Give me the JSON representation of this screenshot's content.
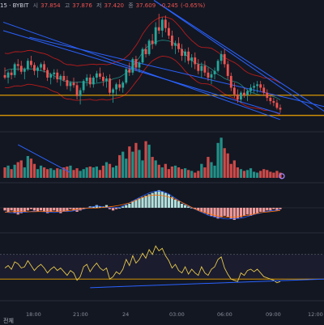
{
  "header": {
    "symbol_suffix": "15 · BYBIT",
    "open_label": "시",
    "open_value": "37.854",
    "high_label": "고",
    "high_value": "37.876",
    "low_label": "저",
    "low_value": "37.420",
    "close_label": "종",
    "close_value": "37.609",
    "change_value": "-0.245",
    "change_pct": "(-0.65%)"
  },
  "bottom_bar": {
    "corner_label": "전체"
  },
  "colors": {
    "background": "#131722",
    "up": "#26a69a",
    "down": "#ef5350",
    "trendline": "#2962ff",
    "horizontal_level": "#f0a500",
    "band": "#b71c1c",
    "rsi_line": "#e6c84c",
    "macd_line": "#2962ff",
    "signal_line": "#ff6d00"
  },
  "chart_data": {
    "type": "candlestick",
    "x_ticks": [
      "18:00",
      "21:00",
      "24",
      "03:00",
      "06:00",
      "09:00",
      "12:00"
    ],
    "ohlc": [
      [
        55,
        64,
        50,
        52
      ],
      [
        52,
        60,
        45,
        58
      ],
      [
        58,
        62,
        50,
        55
      ],
      [
        55,
        70,
        52,
        68
      ],
      [
        68,
        74,
        60,
        66
      ],
      [
        66,
        72,
        56,
        59
      ],
      [
        59,
        64,
        50,
        62
      ],
      [
        62,
        75,
        60,
        72
      ],
      [
        72,
        78,
        64,
        67
      ],
      [
        67,
        70,
        55,
        60
      ],
      [
        60,
        66,
        52,
        64
      ],
      [
        64,
        70,
        60,
        68
      ],
      [
        68,
        72,
        58,
        61
      ],
      [
        61,
        64,
        48,
        52
      ],
      [
        52,
        58,
        44,
        56
      ],
      [
        56,
        62,
        50,
        58
      ],
      [
        58,
        62,
        46,
        50
      ],
      [
        50,
        56,
        42,
        54
      ],
      [
        54,
        60,
        47,
        49
      ],
      [
        49,
        54,
        38,
        42
      ],
      [
        42,
        48,
        36,
        46
      ],
      [
        46,
        52,
        40,
        43
      ],
      [
        43,
        47,
        26,
        30
      ],
      [
        30,
        40,
        20,
        37
      ],
      [
        37,
        50,
        34,
        48
      ],
      [
        48,
        56,
        42,
        52
      ],
      [
        52,
        56,
        40,
        44
      ],
      [
        44,
        54,
        40,
        52
      ],
      [
        52,
        60,
        46,
        57
      ],
      [
        57,
        64,
        50,
        53
      ],
      [
        53,
        58,
        42,
        48
      ],
      [
        48,
        54,
        40,
        51
      ],
      [
        51,
        56,
        30,
        34
      ],
      [
        34,
        40,
        22,
        38
      ],
      [
        38,
        46,
        30,
        44
      ],
      [
        44,
        50,
        36,
        40
      ],
      [
        40,
        48,
        34,
        46
      ],
      [
        46,
        64,
        44,
        62
      ],
      [
        62,
        70,
        54,
        58
      ],
      [
        58,
        76,
        55,
        74
      ],
      [
        74,
        78,
        60,
        64
      ],
      [
        64,
        72,
        58,
        70
      ],
      [
        70,
        88,
        68,
        86
      ],
      [
        86,
        92,
        76,
        80
      ],
      [
        80,
        98,
        78,
        96
      ],
      [
        96,
        104,
        86,
        92
      ],
      [
        92,
        118,
        90,
        112
      ],
      [
        112,
        128,
        104,
        108
      ],
      [
        108,
        124,
        100,
        121
      ],
      [
        121,
        126,
        106,
        111
      ],
      [
        111,
        118,
        98,
        102
      ],
      [
        102,
        108,
        86,
        90
      ],
      [
        90,
        96,
        80,
        93
      ],
      [
        93,
        100,
        82,
        86
      ],
      [
        86,
        92,
        72,
        78
      ],
      [
        78,
        86,
        70,
        83
      ],
      [
        83,
        88,
        68,
        72
      ],
      [
        72,
        80,
        64,
        76
      ],
      [
        76,
        82,
        62,
        68
      ],
      [
        68,
        74,
        56,
        60
      ],
      [
        60,
        70,
        52,
        66
      ],
      [
        66,
        72,
        54,
        58
      ],
      [
        58,
        64,
        48,
        52
      ],
      [
        52,
        60,
        44,
        56
      ],
      [
        56,
        64,
        50,
        60
      ],
      [
        60,
        74,
        58,
        72
      ],
      [
        72,
        84,
        68,
        80
      ],
      [
        80,
        86,
        64,
        68
      ],
      [
        68,
        72,
        50,
        54
      ],
      [
        54,
        58,
        36,
        40
      ],
      [
        40,
        46,
        28,
        32
      ],
      [
        32,
        38,
        22,
        26
      ],
      [
        26,
        36,
        22,
        34
      ],
      [
        34,
        40,
        28,
        31
      ],
      [
        31,
        38,
        24,
        36
      ],
      [
        36,
        44,
        32,
        40
      ],
      [
        40,
        46,
        34,
        42
      ],
      [
        42,
        48,
        34,
        44
      ],
      [
        44,
        48,
        36,
        40
      ],
      [
        40,
        44,
        30,
        34
      ],
      [
        34,
        38,
        24,
        28
      ],
      [
        28,
        32,
        20,
        24
      ],
      [
        24,
        28,
        18,
        22
      ],
      [
        22,
        26,
        14,
        16
      ],
      [
        16,
        20,
        10,
        14
      ]
    ],
    "volume": [
      12,
      14,
      10,
      15,
      18,
      20,
      12,
      25,
      22,
      16,
      10,
      14,
      12,
      10,
      11,
      9,
      11,
      10,
      12,
      13,
      14,
      9,
      11,
      8,
      10,
      12,
      13,
      12,
      13,
      9,
      14,
      18,
      16,
      12,
      14,
      26,
      30,
      22,
      36,
      30,
      40,
      32,
      20,
      42,
      38,
      24,
      20,
      15,
      12,
      16,
      10,
      13,
      14,
      12,
      10,
      11,
      9,
      8,
      6,
      8,
      16,
      12,
      24,
      18,
      14,
      40,
      46,
      34,
      28,
      16,
      20,
      12,
      10,
      8,
      9,
      11,
      7,
      6,
      8,
      10,
      9,
      7,
      6,
      8,
      6
    ],
    "macd_hist": [
      -2,
      -3,
      -2,
      -4,
      -5,
      -4,
      -3,
      -2,
      -1,
      -2,
      -3,
      -2,
      -3,
      -4,
      -3,
      -2,
      -3,
      -4,
      -3,
      -2,
      -1,
      -2,
      -3,
      -2,
      -1,
      0,
      1,
      1,
      2,
      1,
      1,
      2,
      -1,
      -2,
      -1,
      0,
      1,
      2,
      3,
      5,
      6,
      7,
      8,
      9,
      10,
      11,
      12,
      13,
      12,
      11,
      10,
      8,
      6,
      5,
      3,
      2,
      1,
      0,
      -1,
      -2,
      -3,
      -4,
      -5,
      -6,
      -7,
      -8,
      -7,
      -6,
      -7,
      -8,
      -9,
      -8,
      -7,
      -6,
      -5,
      -6,
      -5,
      -4,
      -3,
      -3,
      -2,
      -2,
      -1,
      -2,
      -1
    ],
    "rsi": [
      48,
      52,
      46,
      58,
      55,
      48,
      50,
      60,
      52,
      44,
      50,
      54,
      48,
      40,
      46,
      50,
      44,
      48,
      42,
      36,
      44,
      40,
      28,
      34,
      50,
      54,
      42,
      50,
      56,
      48,
      44,
      48,
      30,
      34,
      42,
      38,
      46,
      62,
      52,
      68,
      56,
      62,
      72,
      64,
      78,
      70,
      84,
      76,
      80,
      68,
      60,
      48,
      54,
      44,
      40,
      50,
      38,
      46,
      40,
      36,
      50,
      40,
      36,
      46,
      50,
      62,
      66,
      48,
      38,
      30,
      28,
      26,
      40,
      36,
      44,
      46,
      42,
      46,
      40,
      34,
      32,
      30,
      28,
      24,
      26
    ],
    "levels": [
      31,
      7
    ]
  }
}
